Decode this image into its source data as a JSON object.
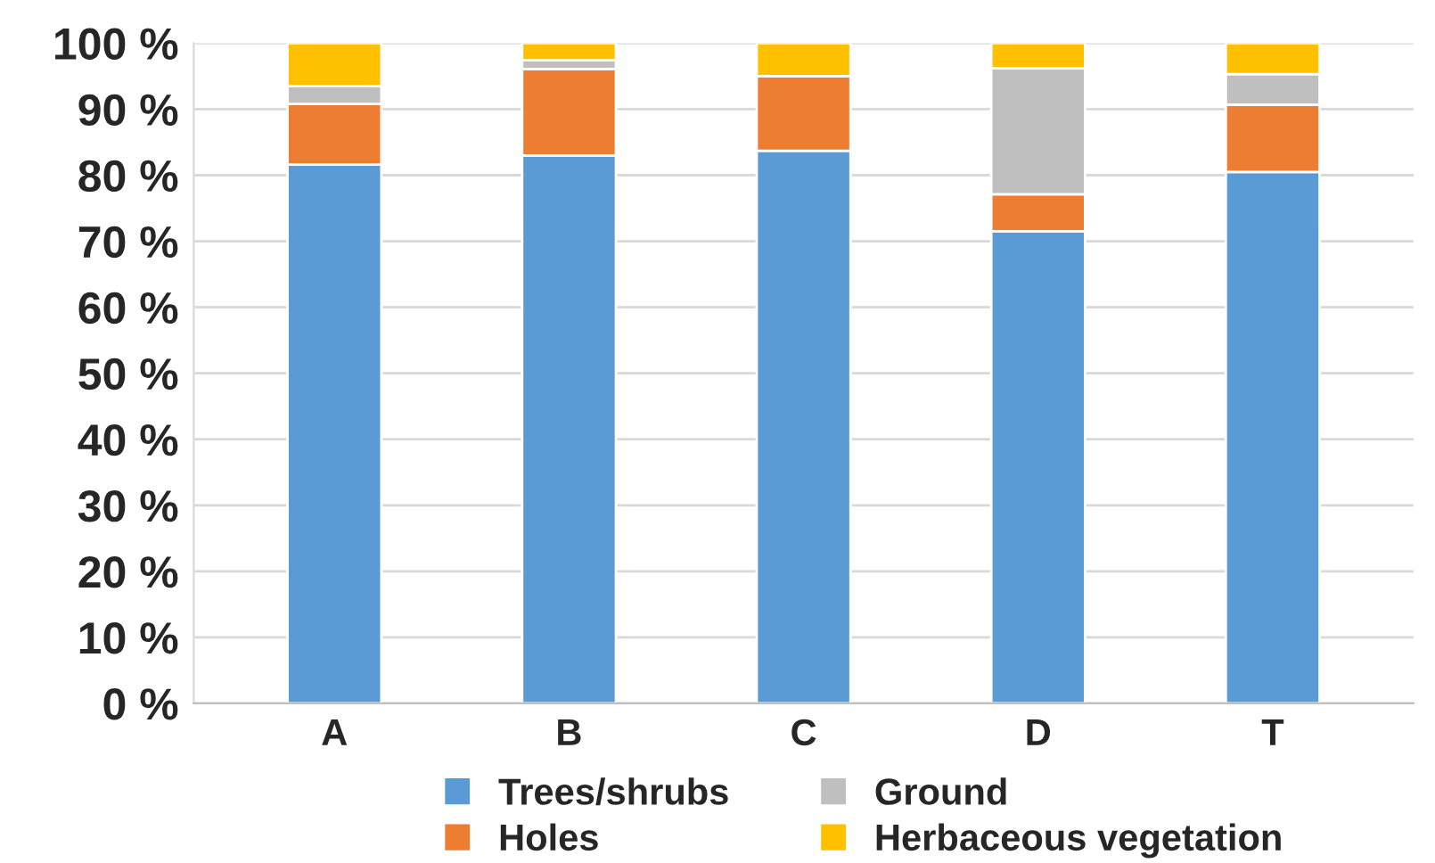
{
  "chart_data": {
    "type": "bar",
    "stacked": true,
    "categories": [
      "A",
      "B",
      "C",
      "D",
      "T"
    ],
    "series": [
      {
        "name": "Trees/shrubs",
        "color": "#5b9bd5",
        "values": [
          81.6,
          83.0,
          83.7,
          71.5,
          80.5
        ]
      },
      {
        "name": "Holes",
        "color": "#ed7d31",
        "values": [
          9.2,
          13.1,
          11.3,
          5.6,
          10.2
        ]
      },
      {
        "name": "Ground",
        "color": "#bfbfbf",
        "values": [
          2.7,
          1.3,
          0,
          19.1,
          4.6
        ]
      },
      {
        "name": "Herbaceous vegetation",
        "color": "#ffc000",
        "values": [
          6.5,
          2.6,
          5.0,
          3.8,
          4.7
        ]
      }
    ],
    "ylim": [
      0,
      100
    ],
    "yticks": [
      {
        "value": 0,
        "label": "0 %"
      },
      {
        "value": 10,
        "label": "10 %"
      },
      {
        "value": 20,
        "label": "20 %"
      },
      {
        "value": 30,
        "label": "30 %"
      },
      {
        "value": 40,
        "label": "40 %"
      },
      {
        "value": 50,
        "label": "50 %"
      },
      {
        "value": 60,
        "label": "60 %"
      },
      {
        "value": 70,
        "label": "70 %"
      },
      {
        "value": 80,
        "label": "80 %"
      },
      {
        "value": 90,
        "label": "90 %"
      },
      {
        "value": 100,
        "label": "100 %"
      }
    ],
    "grid": "y",
    "legend": "bottom"
  }
}
